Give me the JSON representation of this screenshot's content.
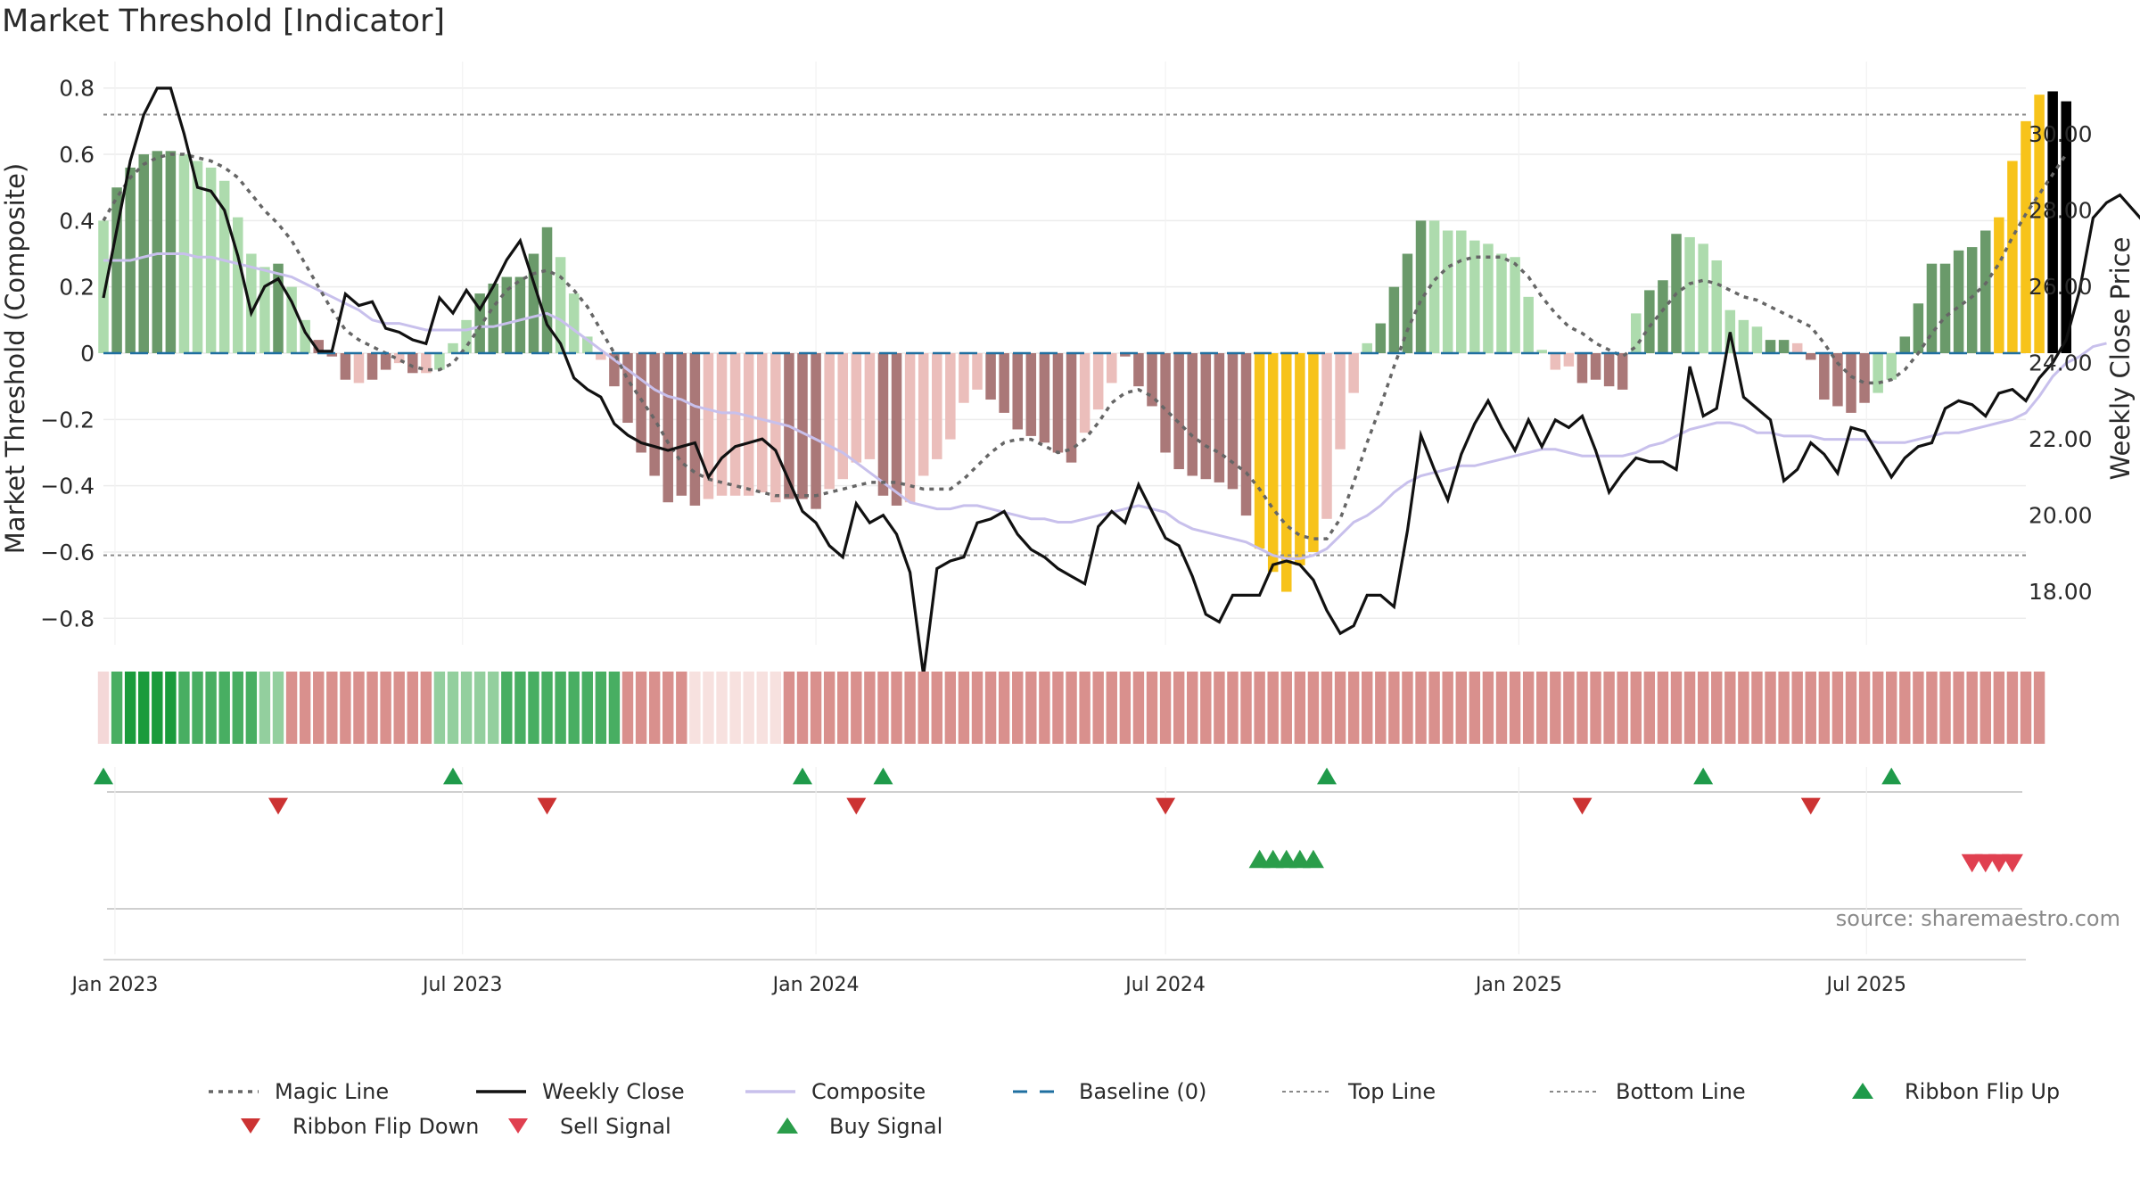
{
  "chart_data": {
    "type": "bar",
    "title": "Market Threshold [Indicator]",
    "ylabel_left": "Market Threshold (Composite)",
    "ylabel_right": "Weekly Close Price",
    "ylim_left": [
      -0.88,
      0.88
    ],
    "ylim_right": [
      16.6,
      31.9
    ],
    "yticks_left": [
      0.8,
      0.6,
      0.4,
      0.2,
      0,
      -0.2,
      -0.4,
      -0.6,
      -0.8
    ],
    "ytick_labels_left": [
      "0.8",
      "0.6",
      "0.4",
      "0.2",
      "0",
      "−0.2",
      "−0.4",
      "−0.6",
      "−0.8"
    ],
    "yticks_right": [
      30,
      28,
      26,
      24,
      22,
      20,
      18
    ],
    "ytick_labels_right": [
      "30.00",
      "28.00",
      "26.00",
      "24.00",
      "22.00",
      "20.00",
      "18.00"
    ],
    "x_start": "2022-12-26",
    "x_end": "2025-09-22",
    "x_ticks": [
      {
        "date": "2023-01-01",
        "label": "Jan 2023"
      },
      {
        "date": "2023-07-01",
        "label": "Jul 2023"
      },
      {
        "date": "2024-01-01",
        "label": "Jan 2024"
      },
      {
        "date": "2024-07-01",
        "label": "Jul 2024"
      },
      {
        "date": "2025-01-01",
        "label": "Jan 2025"
      },
      {
        "date": "2025-07-01",
        "label": "Jul 2025"
      }
    ],
    "grid": true,
    "top_line": 0.72,
    "bottom_line": -0.61,
    "baseline": 0,
    "composite_bars": [
      0.4,
      0.5,
      0.56,
      0.6,
      0.61,
      0.61,
      0.6,
      0.58,
      0.56,
      0.52,
      0.41,
      0.3,
      0.26,
      0.27,
      0.2,
      0.1,
      0.04,
      -0.01,
      -0.08,
      -0.09,
      -0.08,
      -0.05,
      -0.03,
      -0.06,
      -0.06,
      -0.05,
      0.03,
      0.1,
      0.18,
      0.21,
      0.23,
      0.23,
      0.3,
      0.38,
      0.29,
      0.18,
      0.05,
      -0.02,
      -0.1,
      -0.21,
      -0.3,
      -0.37,
      -0.45,
      -0.43,
      -0.46,
      -0.44,
      -0.43,
      -0.43,
      -0.43,
      -0.42,
      -0.45,
      -0.44,
      -0.44,
      -0.47,
      -0.41,
      -0.38,
      -0.33,
      -0.32,
      -0.43,
      -0.46,
      -0.45,
      -0.37,
      -0.32,
      -0.26,
      -0.15,
      -0.11,
      -0.14,
      -0.18,
      -0.23,
      -0.25,
      -0.27,
      -0.3,
      -0.33,
      -0.24,
      -0.17,
      -0.09,
      -0.01,
      -0.1,
      -0.16,
      -0.3,
      -0.35,
      -0.37,
      -0.38,
      -0.39,
      -0.41,
      -0.49,
      -0.59,
      -0.66,
      -0.72,
      -0.64,
      -0.6,
      -0.5,
      -0.29,
      -0.12,
      0.03,
      0.09,
      0.2,
      0.3,
      0.4,
      0.4,
      0.37,
      0.37,
      0.34,
      0.33,
      0.3,
      0.29,
      0.17,
      0.01,
      -0.05,
      -0.04,
      -0.09,
      -0.08,
      -0.1,
      -0.11,
      0.12,
      0.19,
      0.22,
      0.36,
      0.35,
      0.33,
      0.28,
      0.13,
      0.1,
      0.08,
      0.04,
      0.04,
      0.03,
      -0.02,
      -0.14,
      -0.16,
      -0.18,
      -0.15,
      -0.12,
      -0.08,
      0.05,
      0.15,
      0.27,
      0.27,
      0.31,
      0.32,
      0.37,
      0.41,
      0.58,
      0.7,
      0.78,
      0.79,
      0.76
    ],
    "bar_color_codes": [
      2,
      1,
      1,
      1,
      1,
      1,
      2,
      2,
      2,
      2,
      2,
      2,
      2,
      1,
      2,
      2,
      4,
      4,
      4,
      3,
      4,
      4,
      3,
      4,
      3,
      2,
      2,
      2,
      1,
      1,
      1,
      1,
      1,
      1,
      2,
      2,
      2,
      3,
      4,
      4,
      4,
      4,
      4,
      4,
      4,
      3,
      3,
      3,
      3,
      3,
      3,
      4,
      4,
      4,
      3,
      3,
      3,
      3,
      4,
      4,
      3,
      3,
      3,
      3,
      3,
      3,
      4,
      4,
      4,
      4,
      4,
      4,
      4,
      3,
      3,
      3,
      4,
      4,
      4,
      4,
      4,
      4,
      4,
      4,
      4,
      4,
      5,
      5,
      5,
      5,
      5,
      3,
      3,
      3,
      2,
      1,
      1,
      1,
      1,
      2,
      2,
      2,
      2,
      2,
      2,
      2,
      2,
      2,
      3,
      3,
      4,
      4,
      4,
      4,
      2,
      1,
      1,
      1,
      2,
      2,
      2,
      2,
      2,
      2,
      1,
      1,
      3,
      4,
      4,
      4,
      4,
      4,
      2,
      2,
      1,
      1,
      1,
      1,
      1,
      1,
      1,
      5,
      5,
      5,
      5
    ],
    "weekly_close": [
      25.7,
      27.5,
      29.3,
      30.5,
      31.2,
      31.2,
      30.0,
      28.6,
      28.5,
      28.0,
      26.8,
      25.3,
      26.0,
      26.2,
      25.6,
      24.8,
      24.3,
      24.3,
      25.8,
      25.5,
      25.6,
      24.9,
      24.8,
      24.6,
      24.5,
      25.7,
      25.3,
      25.9,
      25.4,
      26.0,
      26.7,
      27.2,
      26.1,
      25.0,
      24.5,
      23.6,
      23.3,
      23.1,
      22.4,
      22.1,
      21.9,
      21.8,
      21.7,
      21.8,
      21.9,
      21.0,
      21.5,
      21.8,
      21.9,
      22.0,
      21.7,
      20.9,
      20.1,
      19.8,
      19.2,
      18.9,
      20.3,
      19.8,
      20.0,
      19.5,
      18.5,
      15.8,
      18.6,
      18.8,
      18.9,
      19.8,
      19.9,
      20.1,
      19.5,
      19.1,
      18.9,
      18.6,
      18.4,
      18.2,
      19.7,
      20.1,
      19.8,
      20.8,
      20.1,
      19.4,
      19.2,
      18.4,
      17.4,
      17.2,
      17.9,
      17.9,
      17.9,
      18.7,
      18.8,
      18.7,
      18.3,
      17.5,
      16.9,
      17.1,
      17.9,
      17.9,
      17.6,
      19.6,
      22.1,
      21.2,
      20.4,
      21.6,
      22.4,
      23.0,
      22.3,
      21.7,
      22.5,
      21.8,
      22.5,
      22.3,
      22.6,
      21.7,
      20.6,
      21.1,
      21.5,
      21.4,
      21.4,
      21.2,
      23.9,
      22.6,
      22.8,
      24.8,
      23.1,
      22.8,
      22.5,
      20.9,
      21.2,
      21.9,
      21.6,
      21.1,
      22.3,
      22.2,
      21.6,
      21.0,
      21.5,
      21.8,
      21.9,
      22.8,
      23.0,
      22.9,
      22.6,
      23.2,
      23.3,
      23.0,
      23.6,
      24.0,
      24.6,
      25.9,
      27.8,
      28.2,
      28.4,
      28.0,
      27.6
    ],
    "composite_line": [
      0.28,
      0.28,
      0.28,
      0.29,
      0.3,
      0.3,
      0.3,
      0.29,
      0.29,
      0.28,
      0.27,
      0.26,
      0.25,
      0.24,
      0.23,
      0.21,
      0.19,
      0.17,
      0.15,
      0.13,
      0.1,
      0.09,
      0.09,
      0.08,
      0.07,
      0.07,
      0.07,
      0.07,
      0.08,
      0.08,
      0.09,
      0.1,
      0.11,
      0.12,
      0.1,
      0.07,
      0.04,
      0.01,
      -0.02,
      -0.05,
      -0.08,
      -0.11,
      -0.13,
      -0.14,
      -0.16,
      -0.17,
      -0.18,
      -0.18,
      -0.19,
      -0.2,
      -0.21,
      -0.22,
      -0.24,
      -0.26,
      -0.28,
      -0.3,
      -0.33,
      -0.36,
      -0.39,
      -0.42,
      -0.45,
      -0.46,
      -0.47,
      -0.47,
      -0.46,
      -0.46,
      -0.47,
      -0.48,
      -0.49,
      -0.5,
      -0.5,
      -0.51,
      -0.51,
      -0.5,
      -0.49,
      -0.48,
      -0.47,
      -0.46,
      -0.47,
      -0.48,
      -0.51,
      -0.53,
      -0.54,
      -0.55,
      -0.56,
      -0.57,
      -0.59,
      -0.61,
      -0.62,
      -0.62,
      -0.61,
      -0.59,
      -0.55,
      -0.51,
      -0.49,
      -0.46,
      -0.42,
      -0.39,
      -0.37,
      -0.36,
      -0.35,
      -0.34,
      -0.34,
      -0.33,
      -0.32,
      -0.31,
      -0.3,
      -0.29,
      -0.29,
      -0.3,
      -0.31,
      -0.31,
      -0.31,
      -0.31,
      -0.3,
      -0.28,
      -0.27,
      -0.25,
      -0.23,
      -0.22,
      -0.21,
      -0.21,
      -0.22,
      -0.24,
      -0.24,
      -0.25,
      -0.25,
      -0.25,
      -0.26,
      -0.26,
      -0.26,
      -0.26,
      -0.27,
      -0.27,
      -0.27,
      -0.26,
      -0.25,
      -0.24,
      -0.24,
      -0.23,
      -0.22,
      -0.21,
      -0.2,
      -0.18,
      -0.13,
      -0.07,
      -0.03,
      -0.01,
      0.02,
      0.03
    ],
    "magic_line": [
      0.4,
      0.47,
      0.53,
      0.57,
      0.59,
      0.6,
      0.6,
      0.59,
      0.58,
      0.56,
      0.53,
      0.48,
      0.43,
      0.39,
      0.34,
      0.27,
      0.2,
      0.13,
      0.07,
      0.04,
      0.02,
      0.0,
      -0.02,
      -0.04,
      -0.05,
      -0.05,
      -0.03,
      0.02,
      0.08,
      0.14,
      0.19,
      0.22,
      0.24,
      0.25,
      0.23,
      0.19,
      0.14,
      0.07,
      0.0,
      -0.08,
      -0.14,
      -0.2,
      -0.27,
      -0.33,
      -0.36,
      -0.38,
      -0.39,
      -0.4,
      -0.41,
      -0.42,
      -0.43,
      -0.43,
      -0.43,
      -0.43,
      -0.42,
      -0.41,
      -0.4,
      -0.39,
      -0.39,
      -0.39,
      -0.4,
      -0.41,
      -0.41,
      -0.41,
      -0.38,
      -0.34,
      -0.3,
      -0.27,
      -0.26,
      -0.26,
      -0.28,
      -0.3,
      -0.29,
      -0.26,
      -0.21,
      -0.15,
      -0.12,
      -0.11,
      -0.13,
      -0.17,
      -0.21,
      -0.25,
      -0.28,
      -0.3,
      -0.33,
      -0.36,
      -0.41,
      -0.47,
      -0.52,
      -0.55,
      -0.56,
      -0.56,
      -0.5,
      -0.39,
      -0.27,
      -0.16,
      -0.04,
      0.07,
      0.16,
      0.22,
      0.26,
      0.28,
      0.29,
      0.29,
      0.29,
      0.27,
      0.23,
      0.17,
      0.12,
      0.08,
      0.06,
      0.03,
      0.01,
      -0.01,
      0.02,
      0.08,
      0.13,
      0.18,
      0.21,
      0.22,
      0.21,
      0.19,
      0.17,
      0.16,
      0.14,
      0.12,
      0.1,
      0.08,
      0.03,
      -0.03,
      -0.07,
      -0.09,
      -0.09,
      -0.08,
      -0.05,
      0.0,
      0.06,
      0.11,
      0.14,
      0.17,
      0.21,
      0.27,
      0.35,
      0.42,
      0.48,
      0.54,
      0.6
    ],
    "ribbon_color_codes": [
      0,
      2,
      1,
      1,
      1,
      1,
      2,
      2,
      2,
      2,
      2,
      2,
      3,
      3,
      4,
      4,
      4,
      4,
      4,
      4,
      4,
      4,
      4,
      4,
      4,
      3,
      3,
      3,
      3,
      3,
      2,
      2,
      2,
      2,
      2,
      2,
      2,
      2,
      2,
      4,
      4,
      4,
      4,
      4,
      5,
      5,
      5,
      5,
      5,
      5,
      5,
      4,
      4,
      4,
      4,
      4,
      4,
      4,
      4,
      4,
      4,
      4,
      4,
      4,
      4,
      4,
      4,
      4,
      4,
      4,
      4,
      4,
      4,
      4,
      4,
      4,
      4,
      4,
      4,
      4,
      4,
      4,
      4,
      4,
      4,
      4,
      4,
      4,
      4,
      4,
      4,
      4,
      4,
      4,
      4,
      4,
      4,
      4,
      4,
      4,
      4,
      4,
      4,
      4,
      4,
      4,
      4,
      4,
      4,
      4,
      4,
      4,
      4,
      4,
      4,
      4,
      4,
      4,
      4,
      4,
      4,
      4,
      4,
      4,
      4,
      4,
      4,
      4,
      4,
      4,
      4,
      4,
      4,
      4,
      4,
      4,
      4,
      4,
      4,
      4,
      4,
      4,
      4,
      4,
      4
    ],
    "ribbon_flip_up": [
      "2022-12-26",
      "2023-06-26",
      "2023-12-25",
      "2024-02-05",
      "2024-09-23",
      "2025-04-07",
      "2025-07-14"
    ],
    "ribbon_flip_down": [
      "2023-03-27",
      "2023-08-14",
      "2024-01-22",
      "2024-07-01",
      "2025-02-03",
      "2025-06-02"
    ],
    "buy_signal": [
      "2024-08-19",
      "2024-08-26",
      "2024-09-02",
      "2024-09-09",
      "2024-09-16"
    ],
    "sell_signal": [
      "2025-08-25",
      "2025-09-01",
      "2025-09-08",
      "2025-09-15"
    ],
    "source": "source: sharemaestro.com",
    "legend": [
      {
        "label": "Magic Line",
        "kind": "dotted"
      },
      {
        "label": "Weekly Close",
        "kind": "solid"
      },
      {
        "label": "Composite",
        "kind": "composite"
      },
      {
        "label": "Baseline (0)",
        "kind": "dashed"
      },
      {
        "label": "Top Line",
        "kind": "thin-dotted"
      },
      {
        "label": "Bottom Line",
        "kind": "thin-dotted"
      },
      {
        "label": "Ribbon Flip Up",
        "kind": "up-green"
      },
      {
        "label": "Ribbon Flip Down",
        "kind": "down-red"
      },
      {
        "label": "Sell Signal",
        "kind": "down-red2"
      },
      {
        "label": "Buy Signal",
        "kind": "up-green2"
      }
    ],
    "colors": {
      "bar_codes": {
        "1": "#6a9a6a",
        "2": "#addbad",
        "3": "#ebbebb",
        "4": "#aa7878",
        "5": "#f7c31a"
      },
      "ribbon_codes": {
        "0": "#f4d8d8",
        "1": "#1a9b3c",
        "2": "#48ae62",
        "3": "#93cf9e",
        "4": "#d9908d",
        "5": "#f7e1df"
      },
      "weekly_close": "#111111",
      "composite": "#c8c0ec",
      "magic_line": "#666666",
      "baseline": "#1f6fa0",
      "top_bottom": "#888888",
      "flip_up": "#1f9a4a",
      "flip_down": "#cc3333",
      "buy": "#2a9d4a",
      "sell": "#e04050"
    }
  }
}
